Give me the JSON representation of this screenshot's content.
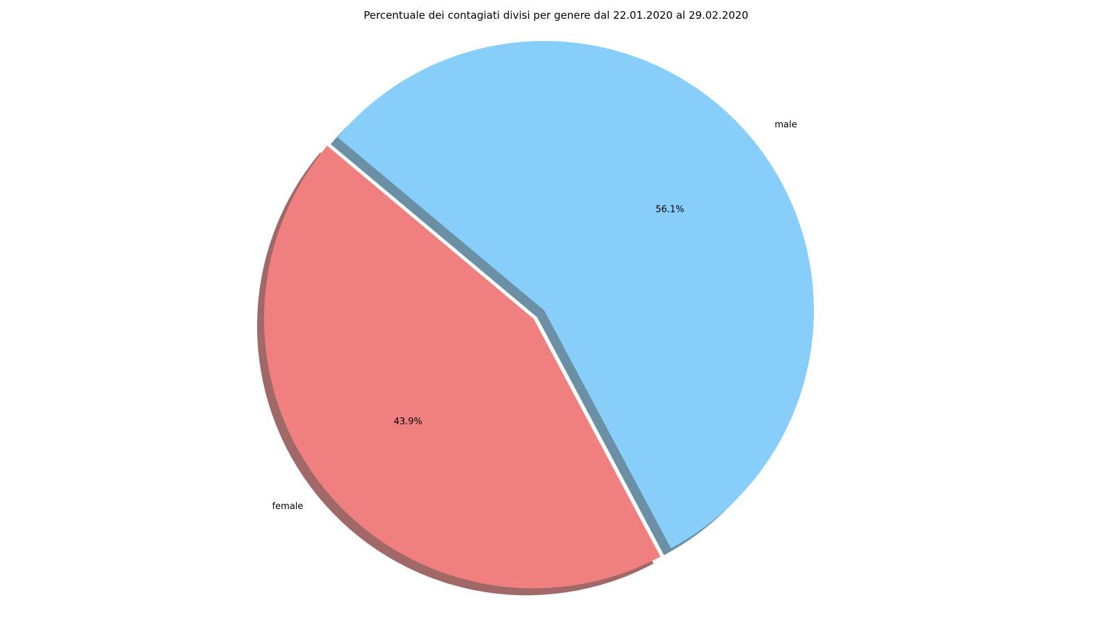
{
  "chart_data": {
    "type": "pie",
    "title": "Percentuale dei contagiati divisi per genere dal 22.01.2020 al 29.02.2020",
    "labels": [
      "female",
      "male"
    ],
    "values": [
      43.9,
      56.1
    ],
    "value_labels": [
      "43.9%",
      "56.1%"
    ],
    "colors": [
      "#f08080",
      "#87cefa"
    ],
    "explode": [
      0.05,
      0
    ],
    "start_angle_deg": 140,
    "shadow": true,
    "legend": "none"
  }
}
